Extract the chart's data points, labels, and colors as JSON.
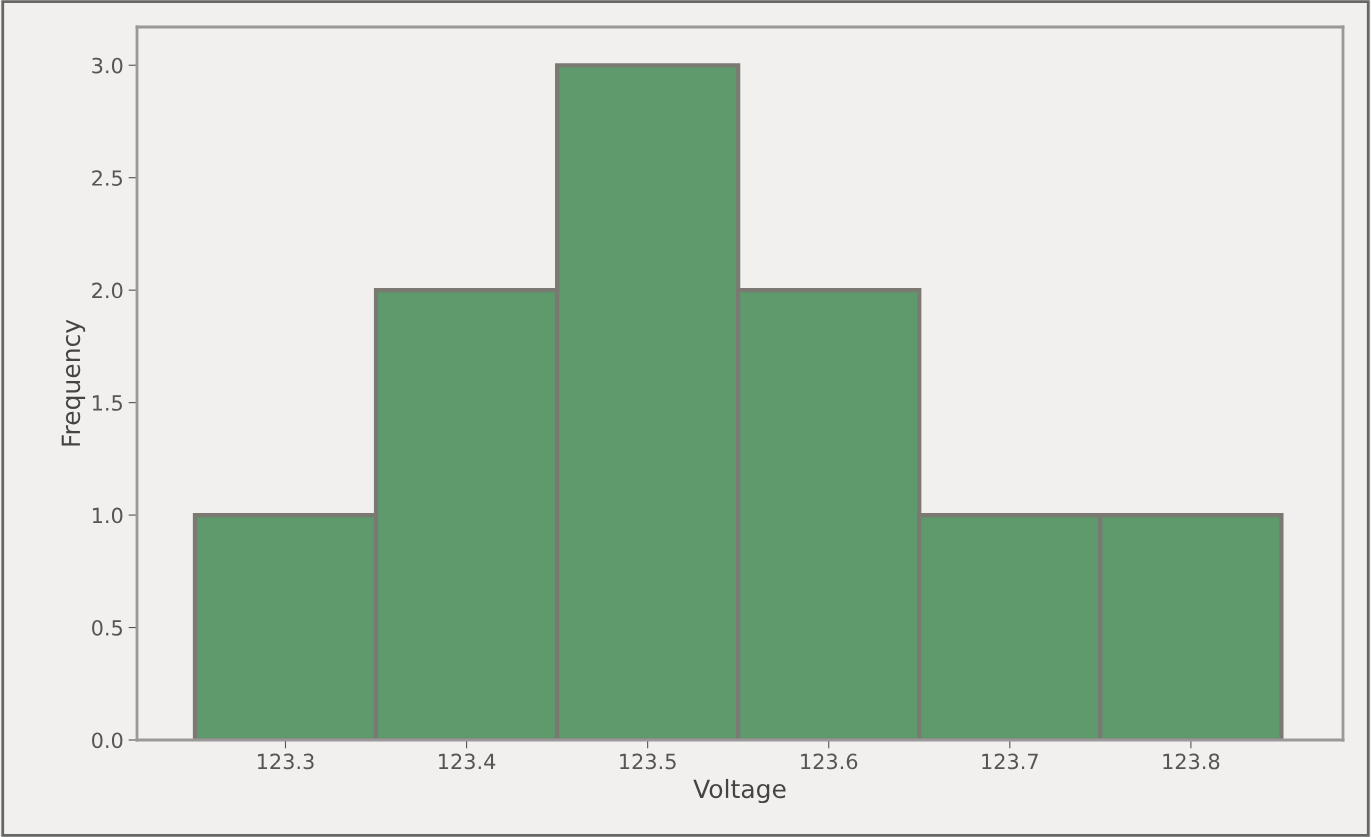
{
  "chart_data": {
    "type": "histogram",
    "xlabel": "Voltage",
    "ylabel": "Frequency",
    "bins": [
      123.25,
      123.35,
      123.45,
      123.55,
      123.65,
      123.75,
      123.85
    ],
    "values": [
      1,
      2,
      3,
      2,
      1,
      1
    ],
    "color": "#5e9a6c",
    "xlim": [
      123.218,
      123.884
    ],
    "ylim": [
      0,
      3.17
    ],
    "xticks": [
      123.3,
      123.4,
      123.5,
      123.6,
      123.7,
      123.8
    ],
    "yticks": [
      {
        "value": 0,
        "label": "0.0"
      },
      {
        "value": 0.5,
        "label": "0.5"
      },
      {
        "value": 1,
        "label": "1.0"
      },
      {
        "value": 1.5,
        "label": "1.5"
      },
      {
        "value": 2,
        "label": "2.0"
      },
      {
        "value": 2.5,
        "label": "2.5"
      },
      {
        "value": 3,
        "label": "3.0"
      }
    ],
    "grid": false
  }
}
